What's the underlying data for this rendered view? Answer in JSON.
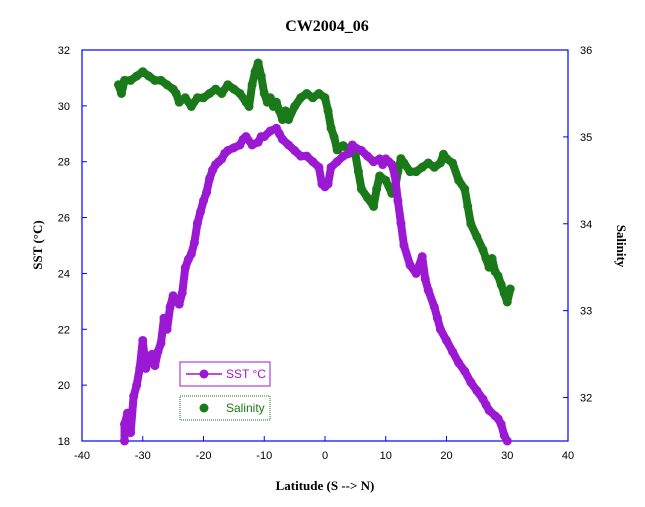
{
  "chart_data": {
    "type": "scatter",
    "title": "CW2004_06",
    "xlabel": "Latitude  (S --> N)",
    "ylabel_left": "SST (°C)",
    "ylabel_right": "Salinity",
    "xlim": [
      -40,
      40
    ],
    "ylim_left": [
      18,
      32
    ],
    "ylim_right": [
      31.5,
      36
    ],
    "x_ticks": [
      "-40",
      "-30",
      "-20",
      "-10",
      "0",
      "10",
      "20",
      "30",
      "40"
    ],
    "y_left_ticks": [
      "18",
      "20",
      "22",
      "24",
      "26",
      "28",
      "30",
      "32"
    ],
    "y_right_ticks": [
      "32",
      "33",
      "34",
      "35",
      "36"
    ],
    "grid": false,
    "legend_position": "lower-left",
    "series": [
      {
        "name": "SST °C",
        "axis": "left",
        "color": "#9b19d2",
        "marker": "circle-line",
        "points": [
          [
            -33,
            18.0
          ],
          [
            -33,
            18.6
          ],
          [
            -32.5,
            19.0
          ],
          [
            -32,
            18.3
          ],
          [
            -31.5,
            19.6
          ],
          [
            -31,
            20.0
          ],
          [
            -30.5,
            20.6
          ],
          [
            -30,
            21.6
          ],
          [
            -29.5,
            20.6
          ],
          [
            -29,
            20.9
          ],
          [
            -28.5,
            21.1
          ],
          [
            -28,
            20.7
          ],
          [
            -27.5,
            21.2
          ],
          [
            -27,
            21.5
          ],
          [
            -26.5,
            22.4
          ],
          [
            -26,
            22.0
          ],
          [
            -25.5,
            22.8
          ],
          [
            -25,
            23.2
          ],
          [
            -24.5,
            23.0
          ],
          [
            -24,
            22.9
          ],
          [
            -23.5,
            23.3
          ],
          [
            -23,
            24.2
          ],
          [
            -22.5,
            24.5
          ],
          [
            -22,
            24.7
          ],
          [
            -21.5,
            25.1
          ],
          [
            -21,
            25.8
          ],
          [
            -20.5,
            26.2
          ],
          [
            -20,
            26.6
          ],
          [
            -19.5,
            26.9
          ],
          [
            -19,
            27.4
          ],
          [
            -18.5,
            27.7
          ],
          [
            -18,
            27.9
          ],
          [
            -17.5,
            28.0
          ],
          [
            -17,
            28.1
          ],
          [
            -16.5,
            28.3
          ],
          [
            -16,
            28.4
          ],
          [
            -15,
            28.5
          ],
          [
            -14,
            28.6
          ],
          [
            -13.5,
            28.8
          ],
          [
            -13,
            28.9
          ],
          [
            -12,
            28.6
          ],
          [
            -11,
            28.7
          ],
          [
            -10.5,
            28.9
          ],
          [
            -10,
            28.9
          ],
          [
            -9,
            29.1
          ],
          [
            -8,
            29.2
          ],
          [
            -7.5,
            29.0
          ],
          [
            -7,
            28.8
          ],
          [
            -6,
            28.6
          ],
          [
            -5,
            28.4
          ],
          [
            -4,
            28.2
          ],
          [
            -3,
            28.2
          ],
          [
            -2,
            28.0
          ],
          [
            -1,
            27.8
          ],
          [
            -0.5,
            27.2
          ],
          [
            0,
            27.1
          ],
          [
            0.5,
            27.2
          ],
          [
            1,
            27.8
          ],
          [
            2,
            28.0
          ],
          [
            3,
            28.2
          ],
          [
            4,
            28.3
          ],
          [
            4.5,
            28.6
          ],
          [
            5,
            28.5
          ],
          [
            6,
            28.4
          ],
          [
            7,
            28.2
          ],
          [
            8,
            28.0
          ],
          [
            9,
            28.1
          ],
          [
            9.5,
            27.9
          ],
          [
            10,
            28.1
          ],
          [
            10.5,
            28.0
          ],
          [
            11,
            27.9
          ],
          [
            11.5,
            27.5
          ],
          [
            12,
            26.6
          ],
          [
            12.5,
            25.8
          ],
          [
            13,
            25.0
          ],
          [
            14,
            24.3
          ],
          [
            15,
            24.0
          ],
          [
            16,
            24.6
          ],
          [
            16.5,
            23.8
          ],
          [
            17,
            23.4
          ],
          [
            18,
            22.8
          ],
          [
            18.5,
            22.4
          ],
          [
            19,
            22.0
          ],
          [
            20,
            21.6
          ],
          [
            21,
            21.2
          ],
          [
            22,
            20.8
          ],
          [
            23,
            20.5
          ],
          [
            24,
            20.1
          ],
          [
            25,
            19.8
          ],
          [
            26,
            19.5
          ],
          [
            26.5,
            19.3
          ],
          [
            27,
            19.1
          ],
          [
            28,
            18.9
          ],
          [
            28.5,
            18.8
          ],
          [
            29,
            18.6
          ],
          [
            29.5,
            18.2
          ],
          [
            30,
            18.0
          ]
        ]
      },
      {
        "name": "Salinity",
        "axis": "right",
        "color": "#1a7a1a",
        "marker": "circle",
        "points": [
          [
            -34,
            35.6
          ],
          [
            -33.5,
            35.5
          ],
          [
            -33,
            35.65
          ],
          [
            -32,
            35.65
          ],
          [
            -31,
            35.7
          ],
          [
            -30,
            35.75
          ],
          [
            -29,
            35.7
          ],
          [
            -28,
            35.65
          ],
          [
            -27,
            35.65
          ],
          [
            -26,
            35.6
          ],
          [
            -25,
            35.55
          ],
          [
            -24.5,
            35.5
          ],
          [
            -24,
            35.4
          ],
          [
            -23,
            35.45
          ],
          [
            -22,
            35.35
          ],
          [
            -21,
            35.45
          ],
          [
            -20,
            35.45
          ],
          [
            -19,
            35.5
          ],
          [
            -18,
            35.55
          ],
          [
            -17,
            35.5
          ],
          [
            -16,
            35.6
          ],
          [
            -15,
            35.55
          ],
          [
            -14,
            35.5
          ],
          [
            -13,
            35.4
          ],
          [
            -12.5,
            35.35
          ],
          [
            -12,
            35.6
          ],
          [
            -11.5,
            35.75
          ],
          [
            -11,
            35.85
          ],
          [
            -10.5,
            35.7
          ],
          [
            -10,
            35.5
          ],
          [
            -9.5,
            35.4
          ],
          [
            -9,
            35.45
          ],
          [
            -8.5,
            35.35
          ],
          [
            -8,
            35.4
          ],
          [
            -7.5,
            35.3
          ],
          [
            -7,
            35.2
          ],
          [
            -6.5,
            35.3
          ],
          [
            -6,
            35.2
          ],
          [
            -5,
            35.35
          ],
          [
            -4,
            35.45
          ],
          [
            -3,
            35.5
          ],
          [
            -2,
            35.45
          ],
          [
            -1,
            35.5
          ],
          [
            0,
            35.45
          ],
          [
            0.5,
            35.3
          ],
          [
            1,
            35.1
          ],
          [
            1.5,
            35.0
          ],
          [
            2,
            34.85
          ],
          [
            3,
            34.9
          ],
          [
            4,
            34.85
          ],
          [
            5,
            34.8
          ],
          [
            5.5,
            34.6
          ],
          [
            6,
            34.4
          ],
          [
            7,
            34.3
          ],
          [
            8,
            34.2
          ],
          [
            8.5,
            34.4
          ],
          [
            9,
            34.55
          ],
          [
            10,
            34.5
          ],
          [
            11,
            34.35
          ],
          [
            11.5,
            34.4
          ],
          [
            12,
            34.6
          ],
          [
            12.5,
            34.75
          ],
          [
            13,
            34.7
          ],
          [
            14,
            34.6
          ],
          [
            15,
            34.6
          ],
          [
            16,
            34.65
          ],
          [
            17,
            34.7
          ],
          [
            18,
            34.65
          ],
          [
            19,
            34.7
          ],
          [
            19.5,
            34.8
          ],
          [
            20,
            34.75
          ],
          [
            21,
            34.7
          ],
          [
            22,
            34.5
          ],
          [
            23,
            34.4
          ],
          [
            23.5,
            34.2
          ],
          [
            24,
            34.0
          ],
          [
            25,
            33.85
          ],
          [
            26,
            33.7
          ],
          [
            26.5,
            33.6
          ],
          [
            27,
            33.5
          ],
          [
            27.5,
            33.6
          ],
          [
            28,
            33.45
          ],
          [
            28.5,
            33.4
          ],
          [
            29,
            33.3
          ],
          [
            29.5,
            33.2
          ],
          [
            30,
            33.1
          ],
          [
            30.5,
            33.25
          ]
        ]
      }
    ]
  }
}
